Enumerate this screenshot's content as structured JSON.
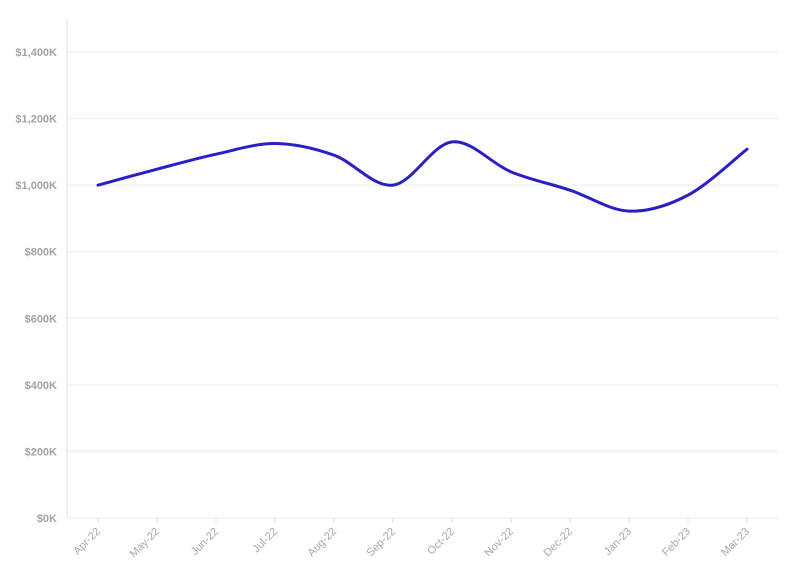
{
  "chart_data": {
    "type": "line",
    "categories": [
      "Apr-22",
      "May-22",
      "Jun-22",
      "Jul-22",
      "Aug-22",
      "Sep-22",
      "Oct-22",
      "Nov-22",
      "Dec-22",
      "Jan-23",
      "Feb-23",
      "Mar-23"
    ],
    "series": [
      {
        "values": [
          1000000,
          1048000,
          1093000,
          1125000,
          1090000,
          1000000,
          1130000,
          1040000,
          985000,
          922000,
          970000,
          1108000
        ]
      }
    ],
    "y_ticks": [
      "$0K",
      "$200K",
      "$400K",
      "$600K",
      "$800K",
      "$1,000K",
      "$1,200K",
      "$1,400K"
    ],
    "ylim": [
      0,
      1400000
    ],
    "grid": true,
    "colors": {
      "line": "#2a1fc7",
      "grid": "#ebebeb",
      "axis_text": "#a3a3a3"
    }
  }
}
